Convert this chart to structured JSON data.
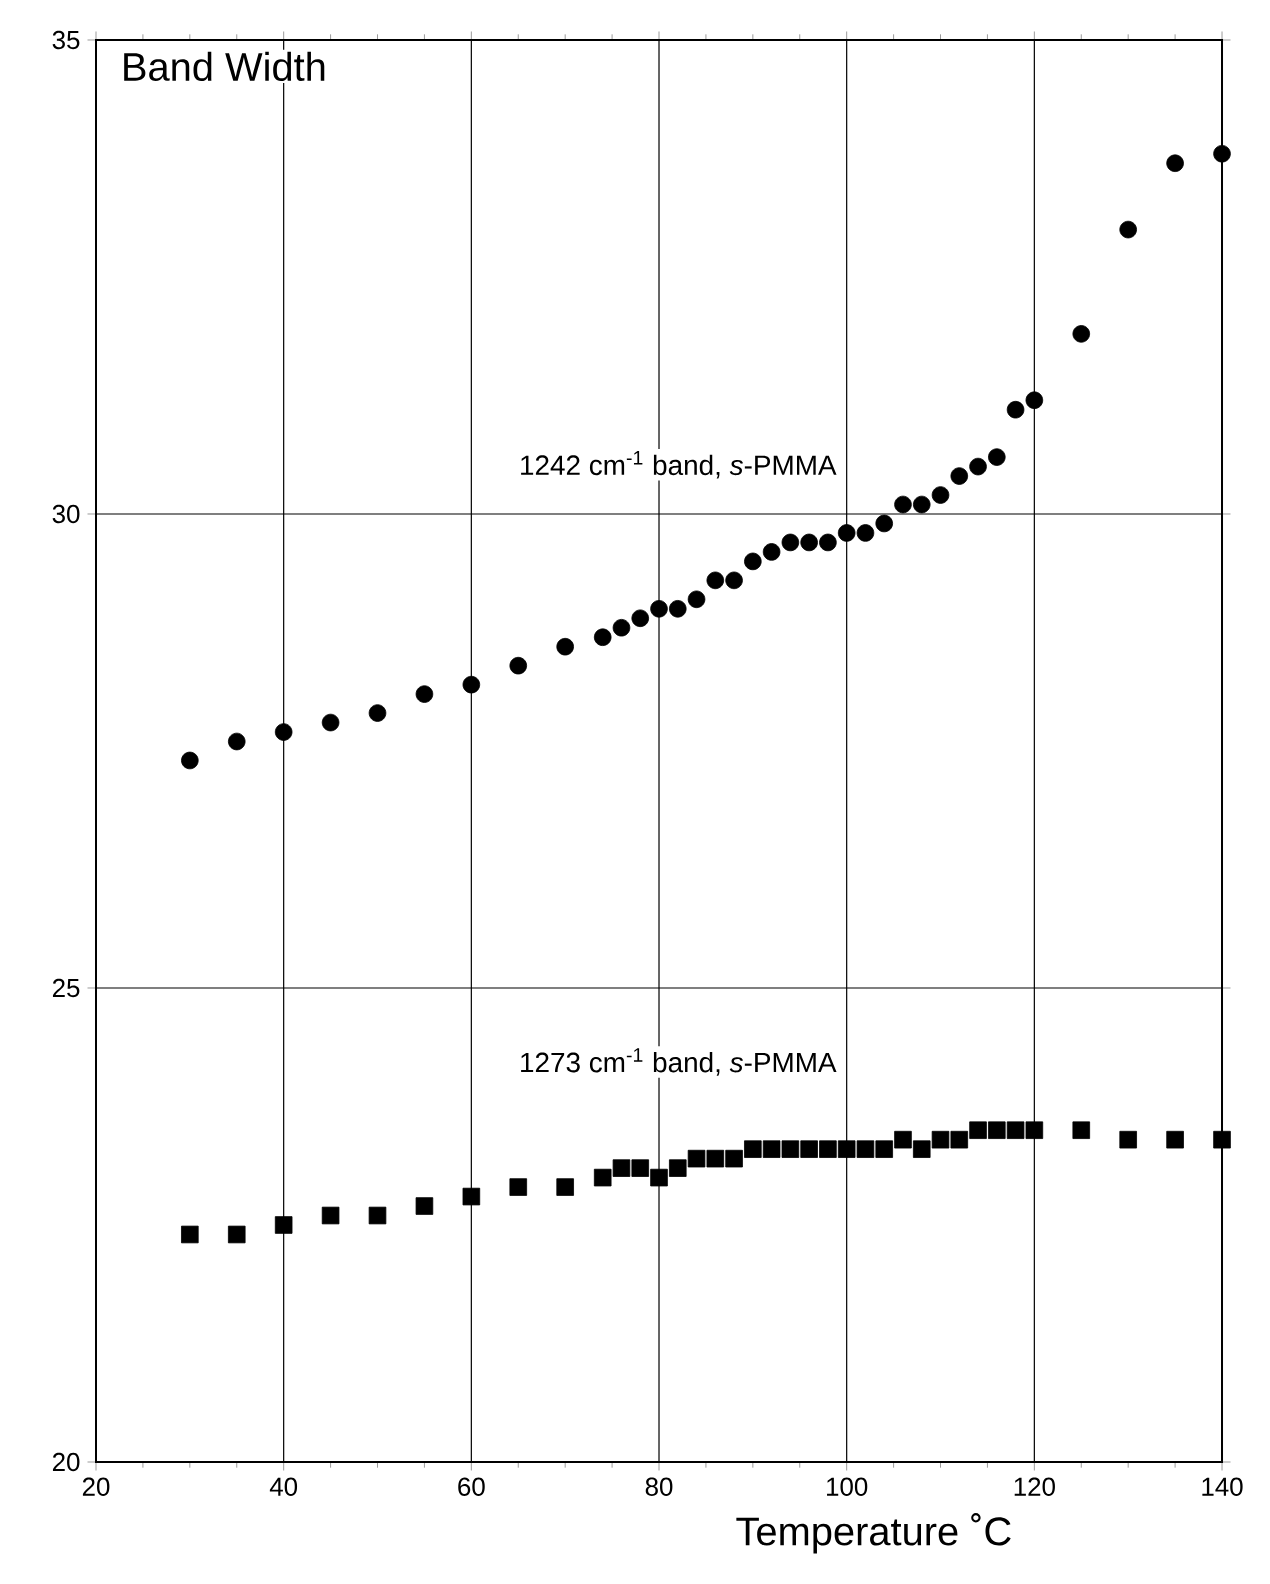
{
  "chart_data": {
    "type": "scatter",
    "title": "Band Width",
    "xlabel": "Temperature ˚C",
    "x": [
      30,
      35,
      40,
      45,
      50,
      55,
      60,
      65,
      70,
      74,
      76,
      78,
      80,
      82,
      84,
      86,
      88,
      90,
      92,
      94,
      96,
      98,
      100,
      102,
      104,
      106,
      108,
      110,
      112,
      114,
      116,
      118,
      120,
      125,
      130,
      135,
      140
    ],
    "series": [
      {
        "name": "1242 cm$^{-1}$ band, *s*-PMMA",
        "color": "#000000",
        "marker": "circle",
        "values": [
          27.4,
          27.6,
          27.7,
          27.8,
          27.9,
          28.1,
          28.2,
          28.4,
          28.6,
          28.7,
          28.8,
          28.9,
          29.0,
          29.0,
          29.1,
          29.3,
          29.3,
          29.5,
          29.6,
          29.7,
          29.7,
          29.7,
          29.8,
          29.8,
          29.9,
          30.1,
          30.1,
          30.2,
          30.4,
          30.5,
          30.6,
          31.1,
          31.2,
          31.9,
          33.0,
          33.7,
          33.8
        ]
      },
      {
        "name": "1273 cm$^{-1}$ band, *s*-PMMA",
        "color": "#000000",
        "marker": "square",
        "values": [
          22.4,
          22.4,
          22.5,
          22.6,
          22.6,
          22.7,
          22.8,
          22.9,
          22.9,
          23.0,
          23.1,
          23.1,
          23.0,
          23.1,
          23.2,
          23.2,
          23.2,
          23.3,
          23.3,
          23.3,
          23.3,
          23.3,
          23.3,
          23.3,
          23.3,
          23.4,
          23.3,
          23.4,
          23.4,
          23.5,
          23.5,
          23.5,
          23.5,
          23.5,
          23.4,
          23.4,
          23.4
        ]
      }
    ],
    "xlim": [
      20,
      140
    ],
    "ylim": [
      20,
      35
    ],
    "xticks": [
      20,
      40,
      60,
      80,
      100,
      120,
      140
    ],
    "yticks": [
      20,
      25,
      30,
      35
    ],
    "grid": true
  }
}
